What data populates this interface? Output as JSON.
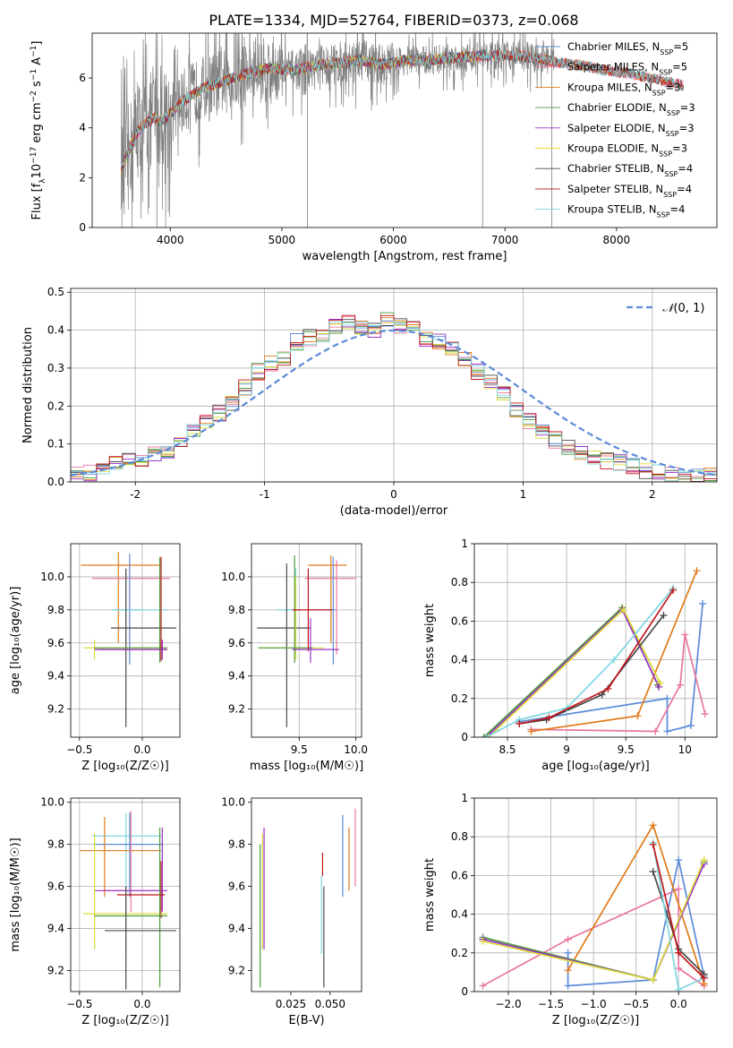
{
  "title": "PLATE=1334, MJD=52764, FIBERID=0373, z=0.068",
  "colors": {
    "chabrier_miles": "#5b8bd9",
    "salpeter_miles": "#e8779e",
    "kroupa_miles": "#e07b1a",
    "chabrier_elodie": "#4e9a3c",
    "salpeter_elodie": "#9b30c8",
    "kroupa_elodie": "#d9dc3a",
    "chabrier_stelib": "#4a4a4a",
    "salpeter_stelib": "#c0161b",
    "kroupa_stelib": "#7fd6df",
    "data": "#808080",
    "normal": "#5b8bd9",
    "grid": "#b0b0b0"
  },
  "legend_entries": [
    {
      "name": "Chabrier MILES",
      "nssp": "5",
      "color_key": "chabrier_miles"
    },
    {
      "name": "Salpeter MILES",
      "nssp": "5",
      "color_key": "salpeter_miles"
    },
    {
      "name": "Kroupa MILES",
      "nssp": "3",
      "color_key": "kroupa_miles"
    },
    {
      "name": "Chabrier ELODIE",
      "nssp": "3",
      "color_key": "chabrier_elodie"
    },
    {
      "name": "Salpeter ELODIE",
      "nssp": "3",
      "color_key": "salpeter_elodie"
    },
    {
      "name": "Kroupa ELODIE",
      "nssp": "3",
      "color_key": "kroupa_elodie"
    },
    {
      "name": "Chabrier STELIB",
      "nssp": "4",
      "color_key": "chabrier_stelib"
    },
    {
      "name": "Salpeter STELIB",
      "nssp": "4",
      "color_key": "salpeter_stelib"
    },
    {
      "name": "Kroupa STELIB",
      "nssp": "4",
      "color_key": "kroupa_stelib"
    }
  ],
  "chart_data": [
    {
      "id": "spectrum",
      "type": "line",
      "xlabel": "wavelength [Angstrom, rest frame]",
      "ylabel_parts": [
        "Flux [f",
        "λ",
        "10",
        "−17",
        " erg cm",
        "−2",
        " s",
        "−1",
        " A",
        "−1",
        "]"
      ],
      "xlim": [
        3300,
        8900
      ],
      "ylim": [
        0,
        7.8
      ],
      "xticks": [
        4000,
        5000,
        6000,
        7000,
        8000
      ],
      "yticks": [
        0,
        2,
        4,
        6
      ],
      "grid": false,
      "legend": "top-right",
      "model_curve": {
        "x": [
          3560,
          3620,
          3700,
          3780,
          3850,
          3900,
          3960,
          4050,
          4150,
          4300,
          4500,
          4700,
          4900,
          5100,
          5300,
          5500,
          5700,
          5900,
          6100,
          6300,
          6500,
          6700,
          6900,
          7100,
          7300,
          7500,
          7700,
          7900,
          8100,
          8300,
          8500,
          8600
        ],
        "y": [
          2.3,
          3.0,
          3.8,
          4.2,
          4.4,
          4.3,
          4.4,
          4.8,
          5.2,
          5.6,
          5.9,
          6.2,
          6.4,
          6.3,
          6.5,
          6.6,
          6.7,
          6.55,
          6.7,
          6.7,
          6.8,
          6.85,
          6.9,
          6.9,
          6.8,
          6.6,
          6.5,
          6.3,
          6.2,
          6.0,
          5.8,
          5.7
        ]
      },
      "data_range": [
        3560,
        7440
      ]
    },
    {
      "id": "residuals",
      "type": "histogram",
      "xlabel": "(data-model)/error",
      "ylabel": "Normed distribution",
      "xlim": [
        -2.5,
        2.5
      ],
      "ylim": [
        0,
        0.51
      ],
      "xticks": [
        -2,
        -1,
        0,
        1,
        2
      ],
      "yticks": [
        0.0,
        0.1,
        0.2,
        0.3,
        0.4,
        0.5
      ],
      "ytick_labels": [
        "0.0",
        "0.1",
        "0.2",
        "0.3",
        "0.4",
        "0.5"
      ],
      "bin_width": 0.1,
      "grid": true,
      "legend": "top-right",
      "legend_label_parts": [
        "𝒩",
        "(0, 1)"
      ],
      "series_values": [
        0.02,
        0.025,
        0.03,
        0.05,
        0.055,
        0.06,
        0.07,
        0.08,
        0.1,
        0.13,
        0.16,
        0.18,
        0.21,
        0.25,
        0.29,
        0.31,
        0.33,
        0.37,
        0.38,
        0.39,
        0.41,
        0.42,
        0.41,
        0.4,
        0.43,
        0.41,
        0.4,
        0.38,
        0.37,
        0.35,
        0.32,
        0.29,
        0.26,
        0.23,
        0.19,
        0.16,
        0.13,
        0.11,
        0.09,
        0.075,
        0.06,
        0.055,
        0.05,
        0.04,
        0.03,
        0.025,
        0.02,
        0.02,
        0.018,
        0.015
      ]
    },
    {
      "id": "age_vs_Z",
      "type": "scatter",
      "xlabel": "Z [log₁₀(Z/Z☉)]",
      "ylabel": "age  [log₁₀(age/yr)]",
      "xlim": [
        -0.57,
        0.3
      ],
      "ylim": [
        9.03,
        10.2
      ],
      "xticks": [
        -0.5,
        0.0
      ],
      "xtick_labels": [
        "−0.5",
        "0.0"
      ],
      "yticks": [
        9.2,
        9.4,
        9.6,
        9.8,
        10.0
      ],
      "yticks_labels": [
        "9.2",
        "9.4",
        "9.6",
        "9.8",
        "10.0"
      ],
      "grid": true,
      "points": [
        {
          "c": "kroupa_miles",
          "x": -0.19,
          "y": 10.07,
          "xe": [
            -0.49,
            0.15
          ],
          "ye": [
            9.6,
            10.15
          ]
        },
        {
          "c": "salpeter_miles",
          "x": -0.1,
          "y": 9.99,
          "xe": [
            -0.4,
            0.22
          ],
          "ye": [
            9.53,
            10.1
          ]
        },
        {
          "c": "chabrier_miles",
          "x": -0.1,
          "y": 9.8,
          "xe": [
            -0.22,
            -0.02
          ],
          "ye": [
            9.47,
            10.14
          ]
        },
        {
          "c": "kroupa_stelib",
          "x": -0.13,
          "y": 9.8,
          "xe": [
            -0.25,
            0.2
          ],
          "ye": [
            9.55,
            10.05
          ]
        },
        {
          "c": "chabrier_stelib",
          "x": -0.13,
          "y": 9.69,
          "xe": [
            -0.25,
            0.27
          ],
          "ye": [
            9.09,
            10.05
          ]
        },
        {
          "c": "kroupa_elodie",
          "x": -0.38,
          "y": 9.57,
          "xe": [
            -0.47,
            0.2
          ],
          "ye": [
            9.5,
            9.62
          ]
        },
        {
          "c": "chabrier_elodie",
          "x": 0.14,
          "y": 9.57,
          "xe": [
            -0.38,
            0.2
          ],
          "ye": [
            9.48,
            10.12
          ]
        },
        {
          "c": "salpeter_stelib",
          "x": 0.15,
          "y": 9.56,
          "xe": [
            -0.35,
            0.2
          ],
          "ye": [
            9.49,
            10.12
          ]
        },
        {
          "c": "salpeter_elodie",
          "x": 0.16,
          "y": 9.56,
          "xe": [
            -0.38,
            0.2
          ],
          "ye": [
            9.5,
            9.62
          ]
        }
      ]
    },
    {
      "id": "age_vs_mass",
      "type": "scatter",
      "xlabel": "mass [log₁₀(M/M☉)]",
      "xlim": [
        9.08,
        10.05
      ],
      "ylim": [
        9.03,
        10.2
      ],
      "xticks": [
        9.5,
        10.0
      ],
      "xtick_labels": [
        "9.5",
        "10.0"
      ],
      "yticks": [
        9.2,
        9.4,
        9.6,
        9.8,
        10.0
      ],
      "yticks_labels": [
        "9.2",
        "9.4",
        "9.6",
        "9.8",
        "10.0"
      ],
      "grid": true,
      "points": [
        {
          "c": "kroupa_miles",
          "x": 9.78,
          "y": 10.07,
          "xe": [
            9.58,
            9.92
          ],
          "ye": [
            9.6,
            10.13
          ]
        },
        {
          "c": "salpeter_miles",
          "x": 9.83,
          "y": 9.99,
          "xe": [
            9.55,
            10.0
          ],
          "ye": [
            9.53,
            10.1
          ]
        },
        {
          "c": "chabrier_miles",
          "x": 9.8,
          "y": 9.8,
          "xe": [
            9.6,
            9.82
          ],
          "ye": [
            9.47,
            10.12
          ]
        },
        {
          "c": "kroupa_stelib",
          "x": 9.47,
          "y": 9.8,
          "xe": [
            9.3,
            9.52
          ],
          "ye": [
            9.55,
            10.05
          ]
        },
        {
          "c": "chabrier_stelib",
          "x": 9.39,
          "y": 9.69,
          "xe": [
            9.13,
            9.6
          ],
          "ye": [
            9.09,
            10.08
          ]
        },
        {
          "c": "kroupa_elodie",
          "x": 9.47,
          "y": 9.57,
          "xe": [
            9.14,
            9.72
          ],
          "ye": [
            9.5,
            10.0
          ]
        },
        {
          "c": "chabrier_elodie",
          "x": 9.46,
          "y": 9.57,
          "xe": [
            9.14,
            9.62
          ],
          "ye": [
            9.48,
            10.13
          ]
        },
        {
          "c": "salpeter_stelib",
          "x": 9.58,
          "y": 9.8,
          "xe": [
            9.44,
            9.79
          ],
          "ye": [
            9.55,
            10.05
          ]
        },
        {
          "c": "salpeter_elodie",
          "x": 9.6,
          "y": 9.56,
          "xe": [
            9.44,
            9.85
          ],
          "ye": [
            9.48,
            9.75
          ]
        }
      ]
    },
    {
      "id": "weight_vs_age",
      "type": "line",
      "xlabel": "age  [log₁₀(age/yr)]",
      "ylabel": "mass weight",
      "xlim": [
        8.22,
        10.27
      ],
      "ylim": [
        0,
        1.0
      ],
      "xticks": [
        8.5,
        9.0,
        9.5,
        10.0
      ],
      "yticks": [
        0.0,
        0.2,
        0.4,
        0.6,
        0.8,
        1.0
      ],
      "grid": true,
      "lines": [
        {
          "c": "chabrier_miles",
          "x": [
            8.6,
            9.85,
            9.85,
            10.05,
            10.15
          ],
          "y": [
            0.08,
            0.2,
            0.03,
            0.06,
            0.69
          ]
        },
        {
          "c": "salpeter_miles",
          "x": [
            8.7,
            9.75,
            9.96,
            10.0,
            10.17
          ],
          "y": [
            0.04,
            0.03,
            0.27,
            0.53,
            0.12
          ]
        },
        {
          "c": "kroupa_miles",
          "x": [
            8.7,
            9.6,
            10.1
          ],
          "y": [
            0.03,
            0.11,
            0.86
          ]
        },
        {
          "c": "chabrier_elodie",
          "x": [
            8.3,
            9.47,
            9.77
          ],
          "y": [
            0.0,
            0.67,
            0.27
          ]
        },
        {
          "c": "salpeter_elodie",
          "x": [
            8.32,
            9.47,
            9.78
          ],
          "y": [
            0.0,
            0.66,
            0.26
          ]
        },
        {
          "c": "kroupa_elodie",
          "x": [
            8.34,
            9.48,
            9.79
          ],
          "y": [
            0.0,
            0.66,
            0.28
          ]
        },
        {
          "c": "chabrier_stelib",
          "x": [
            8.6,
            8.83,
            9.3,
            9.82
          ],
          "y": [
            0.07,
            0.09,
            0.22,
            0.63
          ]
        },
        {
          "c": "kroupa_stelib",
          "x": [
            8.32,
            8.6,
            9.0,
            9.4,
            9.9
          ],
          "y": [
            0.0,
            0.09,
            0.15,
            0.4,
            0.77
          ]
        },
        {
          "c": "salpeter_stelib",
          "x": [
            8.6,
            8.85,
            9.35,
            9.9
          ],
          "y": [
            0.07,
            0.1,
            0.25,
            0.76
          ]
        }
      ]
    },
    {
      "id": "mass_vs_Z",
      "type": "scatter",
      "xlabel": "Z [log₁₀(Z/Z☉)]",
      "ylabel": "mass [log₁₀(M/M☉)]",
      "xlim": [
        -0.57,
        0.3
      ],
      "ylim": [
        9.1,
        10.02
      ],
      "xticks": [
        -0.5,
        0.0
      ],
      "xtick_labels": [
        "−0.5",
        "0.0"
      ],
      "yticks": [
        9.2,
        9.4,
        9.6,
        9.8,
        10.0
      ],
      "yticks_labels": [
        "9.2",
        "9.4",
        "9.6",
        "9.8",
        "10.0"
      ],
      "grid": true,
      "points": [
        {
          "c": "kroupa_stelib",
          "x": -0.13,
          "y": 9.84,
          "xe": [
            -0.4,
            0.15
          ],
          "ye": [
            9.28,
            9.95
          ]
        },
        {
          "c": "chabrier_miles",
          "x": -0.1,
          "y": 9.8,
          "xe": [
            -0.38,
            0.16
          ],
          "ye": [
            9.55,
            9.95
          ]
        },
        {
          "c": "kroupa_miles",
          "x": -0.3,
          "y": 9.77,
          "xe": [
            -0.5,
            0.15
          ],
          "ye": [
            9.55,
            9.93
          ]
        },
        {
          "c": "salpeter_miles",
          "x": -0.09,
          "y": 9.58,
          "xe": [
            -0.3,
            0.14
          ],
          "ye": [
            9.48,
            9.96
          ]
        },
        {
          "c": "salpeter_elodie",
          "x": 0.16,
          "y": 9.58,
          "xe": [
            -0.38,
            0.2
          ],
          "ye": [
            9.48,
            9.88
          ]
        },
        {
          "c": "salpeter_stelib",
          "x": 0.15,
          "y": 9.56,
          "xe": [
            -0.2,
            0.18
          ],
          "ye": [
            9.45,
            9.72
          ]
        },
        {
          "c": "kroupa_elodie",
          "x": -0.38,
          "y": 9.47,
          "xe": [
            -0.47,
            0.2
          ],
          "ye": [
            9.3,
            9.85
          ]
        },
        {
          "c": "chabrier_elodie",
          "x": 0.14,
          "y": 9.46,
          "xe": [
            -0.38,
            0.2
          ],
          "ye": [
            9.12,
            9.88
          ]
        },
        {
          "c": "chabrier_stelib",
          "x": -0.13,
          "y": 9.39,
          "xe": [
            -0.3,
            0.27
          ],
          "ye": [
            9.11,
            9.6
          ]
        }
      ]
    },
    {
      "id": "mass_vs_ebv",
      "type": "scatter",
      "xlabel": "E(B-V)",
      "xlim": [
        0.0,
        0.07
      ],
      "ylim": [
        9.1,
        10.02
      ],
      "xticks": [
        0.025,
        0.05
      ],
      "xtick_labels": [
        "0.025",
        "0.050"
      ],
      "yticks": [
        9.2,
        9.4,
        9.6,
        9.8,
        10.0
      ],
      "yticks_labels": [
        "9.2",
        "9.4",
        "9.6",
        "9.8",
        "10.0"
      ],
      "grid": false,
      "points": [
        {
          "c": "chabrier_elodie",
          "x": 0.0055,
          "ye": [
            9.12,
            9.8
          ]
        },
        {
          "c": "kroupa_elodie",
          "x": 0.007,
          "ye": [
            9.3,
            9.85
          ]
        },
        {
          "c": "salpeter_elodie",
          "x": 0.008,
          "ye": [
            9.3,
            9.88
          ]
        },
        {
          "c": "kroupa_stelib",
          "x": 0.0445,
          "ye": [
            9.28,
            9.65
          ]
        },
        {
          "c": "salpeter_stelib",
          "x": 0.0452,
          "ye": [
            9.65,
            9.76
          ]
        },
        {
          "c": "chabrier_stelib",
          "x": 0.046,
          "ye": [
            9.12,
            9.6
          ]
        },
        {
          "c": "chabrier_miles",
          "x": 0.058,
          "ye": [
            9.55,
            9.94
          ]
        },
        {
          "c": "kroupa_miles",
          "x": 0.062,
          "ye": [
            9.58,
            9.88
          ]
        },
        {
          "c": "salpeter_miles",
          "x": 0.066,
          "ye": [
            9.6,
            9.97
          ]
        }
      ]
    },
    {
      "id": "weight_vs_Z",
      "type": "line",
      "xlabel": "Z [log₁₀(Z/Z☉)]",
      "ylabel": "mass weight",
      "xlim": [
        -2.4,
        0.45
      ],
      "ylim": [
        0,
        1.0
      ],
      "xticks": [
        -2.0,
        -1.5,
        -1.0,
        -0.5,
        0.0
      ],
      "xtick_labels": [
        "−2.0",
        "−1.5",
        "−1.0",
        "−0.5",
        "0.0"
      ],
      "yticks": [
        0.0,
        0.2,
        0.4,
        0.6,
        0.8,
        1.0
      ],
      "grid": true,
      "lines": [
        {
          "c": "chabrier_miles",
          "x": [
            -1.3,
            -1.3,
            -0.3,
            0.0,
            0.3
          ],
          "y": [
            0.2,
            0.03,
            0.06,
            0.68,
            0.08
          ]
        },
        {
          "c": "salpeter_miles",
          "x": [
            -2.3,
            -1.3,
            0.0,
            0.0,
            0.3
          ],
          "y": [
            0.03,
            0.27,
            0.53,
            0.12,
            0.03
          ]
        },
        {
          "c": "kroupa_miles",
          "x": [
            -1.3,
            -0.3,
            0.3
          ],
          "y": [
            0.11,
            0.86,
            0.04
          ]
        },
        {
          "c": "chabrier_elodie",
          "x": [
            -2.3,
            -0.3,
            0.3
          ],
          "y": [
            0.28,
            0.06,
            0.67
          ]
        },
        {
          "c": "salpeter_elodie",
          "x": [
            -2.3,
            -0.3,
            0.3
          ],
          "y": [
            0.27,
            0.06,
            0.66
          ]
        },
        {
          "c": "kroupa_elodie",
          "x": [
            -2.3,
            -0.3,
            0.3
          ],
          "y": [
            0.26,
            0.06,
            0.68
          ]
        },
        {
          "c": "chabrier_stelib",
          "x": [
            -0.3,
            0.0,
            0.3
          ],
          "y": [
            0.62,
            0.22,
            0.09
          ]
        },
        {
          "c": "kroupa_stelib",
          "x": [
            -0.3,
            0.0,
            0.3
          ],
          "y": [
            0.77,
            0.01,
            0.07
          ]
        },
        {
          "c": "salpeter_stelib",
          "x": [
            -0.3,
            0.0,
            0.3
          ],
          "y": [
            0.76,
            0.2,
            0.07
          ]
        }
      ]
    }
  ]
}
